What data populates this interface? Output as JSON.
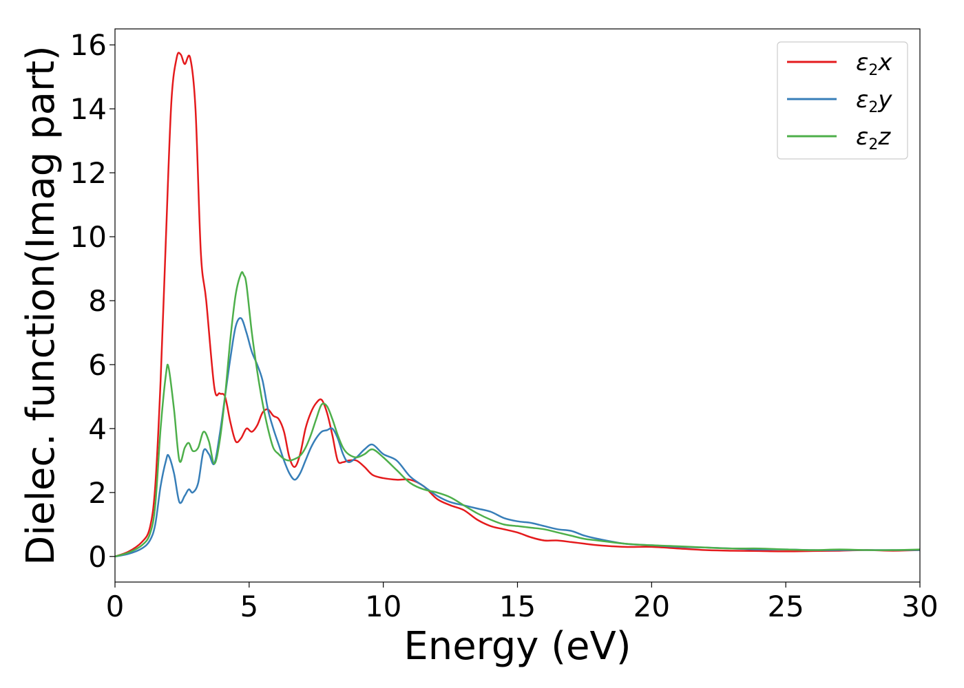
{
  "chart_data": {
    "type": "line",
    "xlabel": "Energy (eV)",
    "ylabel": "Dielec. function(Imag part)",
    "xlim": [
      0,
      30
    ],
    "ylim": [
      -0.8,
      16.5
    ],
    "xticks": [
      0,
      5,
      10,
      15,
      20,
      25,
      30
    ],
    "yticks": [
      0,
      2,
      4,
      6,
      8,
      10,
      12,
      14,
      16
    ],
    "grid": false,
    "legend_position": "top-right",
    "series": [
      {
        "name": "ε2x",
        "legend_base": "ε",
        "legend_sub": "2",
        "legend_suffix": "x",
        "color": "#e41a1c",
        "x": [
          0,
          0.5,
          1.0,
          1.3,
          1.5,
          1.7,
          1.9,
          2.1,
          2.3,
          2.45,
          2.6,
          2.8,
          3.0,
          3.2,
          3.4,
          3.7,
          3.9,
          4.1,
          4.3,
          4.5,
          4.7,
          4.9,
          5.1,
          5.3,
          5.5,
          5.7,
          5.9,
          6.1,
          6.3,
          6.5,
          6.7,
          6.9,
          7.1,
          7.3,
          7.5,
          7.7,
          7.9,
          8.1,
          8.3,
          8.5,
          8.7,
          9.0,
          9.3,
          9.6,
          10.0,
          10.5,
          11.0,
          11.5,
          12.0,
          12.5,
          13.0,
          13.5,
          14.0,
          14.5,
          15.0,
          15.5,
          16.0,
          16.5,
          17.0,
          17.5,
          18.0,
          19.0,
          20.0,
          21.0,
          22.0,
          23.0,
          24.0,
          25.0,
          26.0,
          27.0,
          28.0,
          29.0,
          30.0
        ],
        "values": [
          0,
          0.15,
          0.45,
          0.9,
          2.2,
          5.5,
          10.0,
          14.2,
          15.6,
          15.7,
          15.4,
          15.6,
          14.0,
          9.5,
          8.0,
          5.3,
          5.1,
          5.0,
          4.2,
          3.6,
          3.7,
          4.0,
          3.9,
          4.1,
          4.5,
          4.6,
          4.4,
          4.3,
          3.9,
          3.1,
          2.8,
          3.2,
          4.0,
          4.5,
          4.8,
          4.9,
          4.5,
          3.8,
          3.0,
          2.95,
          3.0,
          3.0,
          2.8,
          2.55,
          2.45,
          2.4,
          2.4,
          2.2,
          1.8,
          1.6,
          1.45,
          1.15,
          0.95,
          0.85,
          0.75,
          0.6,
          0.5,
          0.5,
          0.45,
          0.4,
          0.35,
          0.3,
          0.3,
          0.25,
          0.2,
          0.18,
          0.17,
          0.16,
          0.17,
          0.18,
          0.2,
          0.18,
          0.2
        ]
      },
      {
        "name": "ε2y",
        "legend_base": "ε",
        "legend_sub": "2",
        "legend_suffix": "y",
        "color": "#377eb8",
        "x": [
          0,
          0.5,
          1.0,
          1.3,
          1.5,
          1.7,
          1.9,
          2.0,
          2.2,
          2.4,
          2.6,
          2.75,
          2.9,
          3.1,
          3.3,
          3.5,
          3.7,
          3.9,
          4.1,
          4.3,
          4.5,
          4.7,
          4.9,
          5.1,
          5.3,
          5.5,
          5.7,
          5.9,
          6.1,
          6.3,
          6.5,
          6.7,
          6.9,
          7.1,
          7.3,
          7.5,
          7.7,
          7.9,
          8.1,
          8.3,
          8.5,
          8.7,
          9.0,
          9.3,
          9.6,
          10.0,
          10.5,
          11.0,
          11.5,
          12.0,
          12.5,
          13.0,
          13.5,
          14.0,
          14.5,
          15.0,
          15.5,
          16.0,
          16.5,
          17.0,
          17.5,
          18.0,
          19.0,
          20.0,
          21.0,
          22.0,
          23.0,
          24.0,
          25.0,
          26.0,
          27.0,
          28.0,
          29.0,
          30.0
        ],
        "values": [
          0,
          0.08,
          0.25,
          0.5,
          1.0,
          2.2,
          3.0,
          3.15,
          2.6,
          1.7,
          1.9,
          2.1,
          2.0,
          2.3,
          3.3,
          3.2,
          2.9,
          3.8,
          5.0,
          6.2,
          7.2,
          7.45,
          7.0,
          6.4,
          6.0,
          5.5,
          4.6,
          4.0,
          3.5,
          3.0,
          2.6,
          2.4,
          2.6,
          3.0,
          3.4,
          3.7,
          3.9,
          3.95,
          4.0,
          3.7,
          3.2,
          2.95,
          3.1,
          3.35,
          3.5,
          3.2,
          3.0,
          2.5,
          2.2,
          1.9,
          1.7,
          1.6,
          1.5,
          1.4,
          1.2,
          1.1,
          1.05,
          0.95,
          0.85,
          0.8,
          0.65,
          0.55,
          0.4,
          0.35,
          0.3,
          0.28,
          0.25,
          0.22,
          0.22,
          0.2,
          0.2,
          0.2,
          0.2,
          0.2
        ]
      },
      {
        "name": "ε2z",
        "legend_base": "ε",
        "legend_sub": "2",
        "legend_suffix": "z",
        "color": "#4daf4a",
        "x": [
          0,
          0.5,
          1.0,
          1.3,
          1.5,
          1.7,
          1.9,
          2.0,
          2.2,
          2.4,
          2.6,
          2.75,
          2.9,
          3.1,
          3.3,
          3.5,
          3.7,
          3.9,
          4.1,
          4.3,
          4.5,
          4.7,
          4.8,
          4.9,
          5.1,
          5.3,
          5.5,
          5.7,
          5.9,
          6.1,
          6.3,
          6.5,
          6.7,
          6.9,
          7.1,
          7.3,
          7.5,
          7.7,
          7.9,
          8.1,
          8.3,
          8.5,
          8.7,
          9.0,
          9.3,
          9.6,
          10.0,
          10.5,
          11.0,
          11.5,
          12.0,
          12.5,
          13.0,
          13.5,
          14.0,
          14.5,
          15.0,
          15.5,
          16.0,
          16.5,
          17.0,
          17.5,
          18.0,
          19.0,
          20.0,
          21.0,
          22.0,
          23.0,
          24.0,
          25.0,
          26.0,
          27.0,
          28.0,
          29.0,
          30.0
        ],
        "values": [
          0,
          0.12,
          0.35,
          0.7,
          1.6,
          4.0,
          5.7,
          5.9,
          4.6,
          3.0,
          3.4,
          3.55,
          3.3,
          3.4,
          3.9,
          3.6,
          2.9,
          3.6,
          5.0,
          6.8,
          8.2,
          8.85,
          8.8,
          8.5,
          7.0,
          5.8,
          4.8,
          4.0,
          3.4,
          3.2,
          3.05,
          3.0,
          3.05,
          3.15,
          3.4,
          3.8,
          4.3,
          4.75,
          4.7,
          4.3,
          3.8,
          3.4,
          3.2,
          3.1,
          3.2,
          3.35,
          3.1,
          2.7,
          2.3,
          2.1,
          2.0,
          1.85,
          1.6,
          1.35,
          1.15,
          1.0,
          0.95,
          0.9,
          0.85,
          0.75,
          0.65,
          0.55,
          0.5,
          0.4,
          0.35,
          0.32,
          0.28,
          0.25,
          0.25,
          0.22,
          0.2,
          0.22,
          0.2,
          0.2,
          0.22
        ]
      }
    ]
  }
}
